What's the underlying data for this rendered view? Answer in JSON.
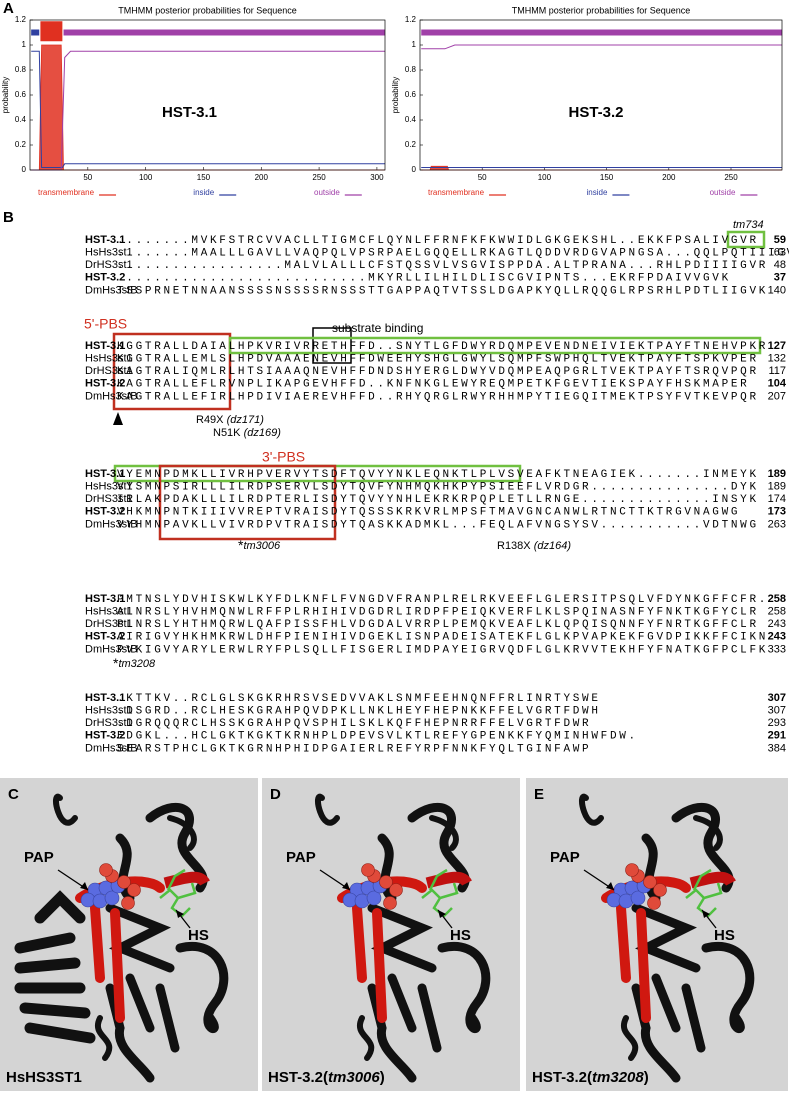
{
  "panel_labels": {
    "a": "A",
    "b": "B",
    "c": "C",
    "d": "D",
    "e": "E"
  },
  "chart_data": [
    {
      "type": "line",
      "title": "TMHMM posterior probabilities for Sequence",
      "annotation": "HST-3.1",
      "ylabel": "probability",
      "xlim": [
        0,
        307
      ],
      "ylim": [
        0,
        1.2
      ],
      "xticks": [
        50,
        100,
        150,
        200,
        250,
        300
      ],
      "yticks": [
        0,
        0.2,
        0.4,
        0.6,
        0.8,
        1,
        1.2
      ],
      "series": [
        {
          "name": "transmembrane",
          "color": "#e03020",
          "x": [
            1,
            8,
            10,
            12,
            27,
            29,
            307
          ],
          "values": [
            0,
            0,
            1,
            1,
            1,
            0,
            0
          ]
        },
        {
          "name": "inside",
          "color": "#3040a0",
          "x": [
            1,
            8,
            10,
            28,
            30,
            307
          ],
          "values": [
            0.95,
            0.95,
            0.02,
            0.02,
            0.05,
            0.05
          ]
        },
        {
          "name": "outside",
          "color": "#a040a8",
          "x": [
            1,
            27,
            30,
            35,
            307
          ],
          "values": [
            0,
            0,
            0.9,
            0.95,
            0.95
          ]
        }
      ],
      "topology": [
        {
          "series": "inside",
          "start": 1,
          "end": 8
        },
        {
          "series": "transmembrane",
          "start": 9,
          "end": 28
        },
        {
          "series": "outside",
          "start": 29,
          "end": 307
        }
      ]
    },
    {
      "type": "line",
      "title": "TMHMM posterior probabilities for Sequence",
      "annotation": "HST-3.2",
      "ylabel": "probability",
      "xlim": [
        0,
        291
      ],
      "ylim": [
        0,
        1.2
      ],
      "xticks": [
        50,
        100,
        150,
        200,
        250
      ],
      "yticks": [
        0,
        0.2,
        0.4,
        0.6,
        0.8,
        1,
        1.2
      ],
      "series": [
        {
          "name": "transmembrane",
          "color": "#e03020",
          "x": [
            1,
            8,
            9,
            22,
            23,
            291
          ],
          "values": [
            0,
            0,
            0.03,
            0.03,
            0,
            0
          ]
        },
        {
          "name": "inside",
          "color": "#3040a0",
          "x": [
            1,
            291
          ],
          "values": [
            0.02,
            0.02
          ]
        },
        {
          "name": "outside",
          "color": "#a040a8",
          "x": [
            1,
            20,
            28,
            291
          ],
          "values": [
            0.97,
            0.97,
            1.0,
            1.0
          ]
        }
      ],
      "topology": [
        {
          "series": "outside",
          "start": 1,
          "end": 291
        }
      ]
    }
  ],
  "alignment": {
    "blocks": [
      [
        [
          "HST-3.1",
          "........MVKFSTRCVVACLLTIGMCFLQYNLFFRNFKFKWWIDLGKGEKSHL..EKKFPSALIVGVR",
          "59",
          true
        ],
        [
          "HsHs3st1",
          "........MAALLLGAVLLVAQPQLVPSRPAELGQQELLRKAGTLQDDVRDGVAPNGSA...QQLPQTIIIGVR",
          "63",
          false
        ],
        [
          "DrHS3st1",
          "..................MALVLALLLCFSTQSSVLVSGVISPPDA.ALTPRANA...RHLPDIIIIGVR",
          "48",
          false
        ],
        [
          "HST-3.2",
          "...........................MKYRLLILHILDLISCGVIPNTS...EKRFPDAIVVGVK",
          "37",
          true
        ],
        [
          "DmHs3stB",
          "TSSPRNETNNAANSSSSNSSSSRNSSSTTGAPPAQTVTSSLDGAPKYQLLRQQGLRPSRHLPDTLIIGVK",
          "140",
          false
        ]
      ],
      [
        [
          "HST-3.1",
          "KGGTRALLDAIALHPKVRIVRRETHFFD..SNYTLGFDWYRDQMPEVENDNEIVIEKTPAYFTNEHVPKR",
          "127",
          true
        ],
        [
          "HsHs3st1",
          "KGGTRALLEMLSLHPDVAAAENEVHFFDWEEHYSHGLGWYLSQMPFSWPHQLTVEKTPAYFTSPKVPER",
          "132",
          false
        ],
        [
          "DrHS3st1",
          "KAGTRALIQMLRLHTSIAAAQNEVHFFDNDSHYERGLDWYVDQMPEAQPGRLTVEKTPAYFTSRQVPQR",
          "117",
          false
        ],
        [
          "HST-3.2",
          "KAGTRALLEFLRVNPLIKAPGEVHFFD..KNFNKGLEWYREQMPETKFGEVTIEKSPAYFHSKMAPER",
          "104",
          true
        ],
        [
          "DmHs3stB",
          "KAGTRALLEFIRLHPDIVIAEREVHFFD..RHYQRGLRWYRHHMPYTIEGQITMEKTPSYFVTKEVPQR",
          "207",
          false
        ]
      ],
      [
        [
          "HST-3.1",
          "VYEMNPDMKLLIVRHPVERVYTSDFTQVYYNKLEQNKTLPLVSVEAFKTNEAGIEK.......INMEYK",
          "189",
          true
        ],
        [
          "HsHs3st1",
          "VYSMNPSIRLLLILRDPSERVLSDYTQVFYNHMQKHKPYPSIEEFLVRDGR...............DYK",
          "189",
          false
        ],
        [
          "DrHS3st1",
          "IRLAKPDAKLLLILRDPTERLISDYTQVYYNHLEKRKRPQPLETLLRNGE..............INSYK",
          "174",
          false
        ],
        [
          "HST-3.2",
          "VHKMNPNTKIIIVVREPTVRAISDYTQSSSKRKVRLMPSFTMAVGNCANWLRTNCTTKTRGVNAGWG",
          "173",
          true
        ],
        [
          "DmHs3stB",
          "VYHMNPAVKLLVIVRDPVTRAISDYTQASKKADMKL...FEQLAFVNGSYSV...........VDTNWG",
          "263",
          false
        ]
      ],
      [
        [
          "HST-3.1",
          "PMTNSLYDVHISKWLKYFDLKNFLFVNGDVFRANPLRELRKVEEFLGLERSITPSQLVFDYNKGFFCFR.",
          "258",
          true
        ],
        [
          "HsHs3st1",
          "ALNRSLYHVHMQNWLRFFPLRHIHIVDGDRLIRDPFPEIQKVERFLKLSPQINASNFYFNKTKGFYCLR",
          "258",
          false
        ],
        [
          "DrHS3st1",
          "PLNRSLYHTHMQRWLQAFPISSFHLVDGDALVRRPLPEMQKVEAFLKLQPQISQNNFYFNRTKGFFCLR",
          "243",
          false
        ],
        [
          "HST-3.2",
          "AIRIGVYHKHMKRWLDHFPIENIHIVDGEKLISNPADEISATEKFLGLKPVAPKEKFGVDPIKKFFCIKN",
          "243",
          true
        ],
        [
          "DmHs3stB",
          "PVKIGVYARYLERWLRYFPLSQLLFISGERLIMDPAYEIGRVQDFLGLKRVVTEKHFYFNATKGFPCLFK",
          "333",
          false
        ]
      ],
      [
        [
          "HST-3.1",
          ".KTTKV..RCLGLSKGKRHRSVSEDVVAKLSNMFEEHNQNFFRLINRTYSWE",
          "307",
          true
        ],
        [
          "HsHs3st1",
          ".DSGRD..RCLHESKGRAHPQVDPKLLNKLHEYFHEPNKKFFELVGRTFDWH",
          "307",
          false
        ],
        [
          "DrHS3st1",
          ".DGRQQQRCLHSSKGRAHPQVSPHILSKLKQFFHEPNRRFFELVGRTFDWR",
          "293",
          false
        ],
        [
          "HST-3.2",
          "EDGKL...HCLGKTKGKTKRNHPLDPEVSVLKTLREFYGPENKKFYQMINHWFDW.",
          "291",
          true
        ],
        [
          "DmHs3stB",
          "SEARSTPHCLGKTKGRNHPHIDPGAIERLREFYRPFNNKFYQLTGINFAWP",
          "384",
          false
        ]
      ]
    ],
    "annotations": {
      "tm734": "tm734",
      "pbs5": "5'-PBS",
      "substrate": "substrate binding",
      "pbs3": "3'-PBS",
      "r49x": "R49X",
      "r49x_allele": "(dz171)",
      "n51k": "N51K",
      "n51k_allele": "(dz169)",
      "r138x": "R138X",
      "r138x_allele": "(dz164)",
      "marker": "*",
      "tm3006": "tm3006",
      "tm3208": "tm3208"
    }
  },
  "structures": [
    {
      "pap": "PAP",
      "hs": "HS",
      "caption": "HsHS3ST1"
    },
    {
      "pap": "PAP",
      "hs": "HS",
      "caption_prefix": "HST-3.2(",
      "caption_italic": "tm3006",
      "caption_suffix": ")"
    },
    {
      "pap": "PAP",
      "hs": "HS",
      "caption_prefix": "HST-3.2(",
      "caption_italic": "tm3208",
      "caption_suffix": ")"
    }
  ]
}
